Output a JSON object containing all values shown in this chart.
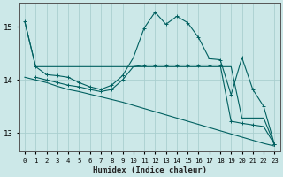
{
  "xlabel": "Humidex (Indice chaleur)",
  "xlim": [
    -0.5,
    23.5
  ],
  "ylim": [
    12.65,
    15.45
  ],
  "yticks": [
    13,
    14,
    15
  ],
  "xticks": [
    0,
    1,
    2,
    3,
    4,
    5,
    6,
    7,
    8,
    9,
    10,
    11,
    12,
    13,
    14,
    15,
    16,
    17,
    18,
    19,
    20,
    21,
    22,
    23
  ],
  "bg_color": "#cce8e8",
  "grid_color": "#aacfcf",
  "line_color": "#006060",
  "lineA_x": [
    0,
    1,
    2,
    3,
    4,
    5,
    6,
    7,
    8,
    9,
    10,
    11,
    12,
    13,
    14,
    15,
    16,
    17,
    18,
    19,
    20,
    21,
    22,
    23
  ],
  "lineA_y": [
    15.1,
    14.25,
    14.1,
    14.08,
    14.05,
    13.95,
    13.87,
    13.82,
    13.9,
    14.08,
    14.42,
    14.98,
    15.28,
    15.05,
    15.2,
    15.08,
    14.8,
    14.4,
    14.38,
    13.72,
    14.42,
    13.82,
    13.5,
    12.78
  ],
  "lineB_x": [
    0,
    1,
    2,
    3,
    4,
    5,
    6,
    7,
    8,
    9,
    10,
    11,
    12,
    13,
    14,
    15,
    16,
    17,
    18,
    19,
    20,
    21,
    22,
    23
  ],
  "lineB_y": [
    15.1,
    14.25,
    14.25,
    14.25,
    14.25,
    14.25,
    14.25,
    14.25,
    14.25,
    14.25,
    14.25,
    14.25,
    14.25,
    14.25,
    14.25,
    14.25,
    14.25,
    14.25,
    14.25,
    14.25,
    13.28,
    13.28,
    13.28,
    12.78
  ],
  "lineC_x": [
    0,
    1,
    2,
    3,
    4,
    5,
    6,
    7,
    8,
    9,
    10,
    11,
    12,
    13,
    14,
    15,
    16,
    17,
    18,
    19,
    20,
    21,
    22,
    23
  ],
  "lineC_y": [
    14.05,
    14.0,
    13.95,
    13.88,
    13.82,
    13.78,
    13.73,
    13.68,
    13.63,
    13.58,
    13.52,
    13.46,
    13.4,
    13.34,
    13.28,
    13.22,
    13.16,
    13.1,
    13.04,
    12.98,
    12.92,
    12.86,
    12.8,
    12.75
  ],
  "lineD_x": [
    1,
    2,
    3,
    4,
    5,
    6,
    7,
    8,
    9,
    10,
    11,
    12,
    13,
    14,
    15,
    16,
    17,
    18,
    19,
    20,
    21,
    22,
    23
  ],
  "lineD_y": [
    14.05,
    14.0,
    13.95,
    13.9,
    13.87,
    13.82,
    13.78,
    13.82,
    14.0,
    14.25,
    14.28,
    14.28,
    14.28,
    14.28,
    14.28,
    14.28,
    14.28,
    14.28,
    13.22,
    13.18,
    13.15,
    13.12,
    12.78
  ]
}
